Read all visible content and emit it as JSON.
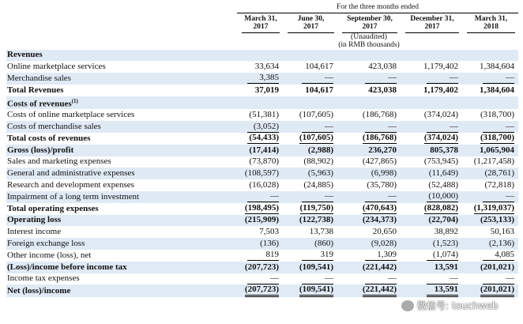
{
  "header": {
    "period": "For the three months ended",
    "columns": [
      {
        "lines": [
          "March 31,",
          "2017"
        ],
        "notes": []
      },
      {
        "lines": [
          "June 30,",
          "2017"
        ],
        "notes": []
      },
      {
        "lines": [
          "September 30,",
          "2017"
        ],
        "notes": [
          "(Unaudited)",
          "(in RMB thousands)"
        ]
      },
      {
        "lines": [
          "December 31,",
          "2017"
        ],
        "notes": []
      },
      {
        "lines": [
          "March 31,",
          "2018"
        ],
        "notes": []
      }
    ]
  },
  "table": {
    "rows": [
      {
        "label": "Revenues",
        "style": "section",
        "values": []
      },
      {
        "label": "Online marketplace services",
        "style": "item",
        "values": [
          "33,634",
          "104,617",
          "423,038",
          "1,179,402",
          "1,384,604"
        ]
      },
      {
        "label": "Merchandise sales",
        "style": "item",
        "underline": "single",
        "values": [
          "3,385",
          "—",
          "—",
          "—",
          "—"
        ]
      },
      {
        "label": "Total Revenues",
        "style": "total",
        "values": [
          "37,019",
          "104,617",
          "423,038",
          "1,179,402",
          "1,384,604"
        ]
      },
      {
        "label": "Costs of revenues",
        "note": "(1)",
        "style": "section",
        "values": []
      },
      {
        "label": "Costs of online marketplace services",
        "style": "item",
        "values": [
          "(51,381)",
          "(107,605)",
          "(186,768)",
          "(374,024)",
          "(318,700)"
        ]
      },
      {
        "label": "Costs of merchandise sales",
        "style": "item",
        "underline": "single",
        "values": [
          "(3,052)",
          "—",
          "—",
          "—",
          "—"
        ]
      },
      {
        "label": "Total costs of revenues",
        "style": "total",
        "underline": "single",
        "values": [
          "(54,433)",
          "(107,605)",
          "(186,768)",
          "(374,024)",
          "(318,700)"
        ]
      },
      {
        "label": "Gross (loss)/profit",
        "style": "total",
        "values": [
          "(17,414)",
          "(2,988)",
          "236,270",
          "805,378",
          "1,065,904"
        ]
      },
      {
        "label": "Sales and marketing expenses",
        "style": "item",
        "values": [
          "(73,870)",
          "(88,902)",
          "(427,865)",
          "(753,945)",
          "(1,217,458)"
        ]
      },
      {
        "label": "General and administrative expenses",
        "style": "item",
        "values": [
          "(108,597)",
          "(5,963)",
          "(6,998)",
          "(11,649)",
          "(28,761)"
        ]
      },
      {
        "label": "Research and development expenses",
        "style": "item",
        "values": [
          "(16,028)",
          "(24,885)",
          "(35,780)",
          "(52,488)",
          "(72,818)"
        ]
      },
      {
        "label": "Impairment of a long term investment",
        "style": "item",
        "underline": "single",
        "values": [
          "—",
          "—",
          "—",
          "(10,000)",
          "—"
        ]
      },
      {
        "label": "Total operating expenses",
        "style": "total",
        "underline": "single",
        "values": [
          "(198,495)",
          "(119,750)",
          "(470,643)",
          "(828,082)",
          "(1,319,037)"
        ]
      },
      {
        "label": "Operating loss",
        "style": "total",
        "values": [
          "(215,909)",
          "(122,738)",
          "(234,373)",
          "(22,704)",
          "(253,133)"
        ]
      },
      {
        "label": "Interest income",
        "style": "item",
        "values": [
          "7,503",
          "13,738",
          "20,650",
          "38,892",
          "50,163"
        ]
      },
      {
        "label": "Foreign exchange loss",
        "style": "item",
        "values": [
          "(136)",
          "(860)",
          "(9,028)",
          "(1,523)",
          "(2,136)"
        ]
      },
      {
        "label": "Other income (loss), net",
        "style": "item",
        "underline": "single",
        "values": [
          "819",
          "319",
          "1,309",
          "(1,074)",
          "4,085"
        ]
      },
      {
        "label": "(Loss)/income before income tax",
        "style": "total",
        "values": [
          "(207,723)",
          "(109,541)",
          "(221,442)",
          "13,591",
          "(201,021)"
        ]
      },
      {
        "label": "Income tax expenses",
        "style": "item",
        "underline": "single",
        "values": [
          "—",
          "—",
          "—",
          "—",
          "—"
        ]
      },
      {
        "label": "Net (loss)/income",
        "style": "total",
        "underline": "double",
        "values": [
          "(207,723)",
          "(109,541)",
          "(221,442)",
          "13,591",
          "(201,021)"
        ]
      }
    ]
  },
  "watermark": "微信号: touchweb"
}
